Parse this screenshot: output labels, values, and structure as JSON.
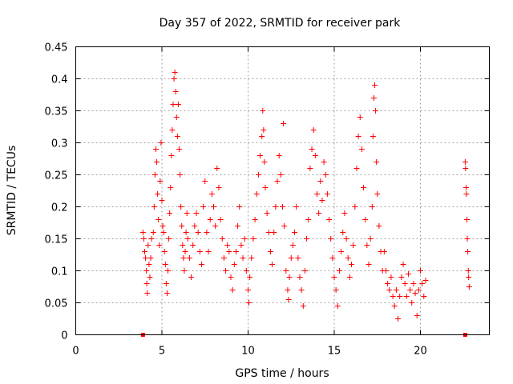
{
  "chart_data": {
    "type": "scatter",
    "title": "Day 357 of 2022, SRMTID for receiver park",
    "xlabel": "GPS time / hours",
    "ylabel": "SRMTID / TECUs",
    "xlim": [
      0,
      24
    ],
    "ylim": [
      0,
      0.45
    ],
    "x_ticks": [
      0,
      5,
      10,
      15,
      20
    ],
    "y_ticks": [
      0,
      0.05,
      0.1,
      0.15,
      0.2,
      0.25,
      0.3,
      0.35,
      0.4,
      0.45
    ],
    "y_tick_labels": [
      "0",
      "0.05",
      "0.1",
      "0.15",
      "0.2",
      "0.25",
      "0.3",
      "0.35",
      "0.4",
      "0.45"
    ],
    "grid": true,
    "marker": "+",
    "color": "#ff0000",
    "zero_markers": [
      [
        3.9,
        0
      ],
      [
        22.6,
        0
      ]
    ],
    "series": [
      {
        "name": "SRMTID",
        "points": [
          [
            3.9,
            0.16
          ],
          [
            3.95,
            0.15
          ],
          [
            4.0,
            0.13
          ],
          [
            4.05,
            0.12
          ],
          [
            4.1,
            0.1
          ],
          [
            4.12,
            0.08
          ],
          [
            4.15,
            0.065
          ],
          [
            4.2,
            0.14
          ],
          [
            4.25,
            0.11
          ],
          [
            4.3,
            0.09
          ],
          [
            4.35,
            0.12
          ],
          [
            4.4,
            0.15
          ],
          [
            4.5,
            0.16
          ],
          [
            4.55,
            0.2
          ],
          [
            4.6,
            0.25
          ],
          [
            4.65,
            0.29
          ],
          [
            4.7,
            0.27
          ],
          [
            4.75,
            0.22
          ],
          [
            4.8,
            0.18
          ],
          [
            4.85,
            0.14
          ],
          [
            4.9,
            0.24
          ],
          [
            4.95,
            0.3
          ],
          [
            5.0,
            0.21
          ],
          [
            5.05,
            0.17
          ],
          [
            5.1,
            0.16
          ],
          [
            5.15,
            0.13
          ],
          [
            5.2,
            0.11
          ],
          [
            5.25,
            0.08
          ],
          [
            5.3,
            0.065
          ],
          [
            5.35,
            0.1
          ],
          [
            5.4,
            0.15
          ],
          [
            5.45,
            0.19
          ],
          [
            5.5,
            0.23
          ],
          [
            5.55,
            0.28
          ],
          [
            5.6,
            0.32
          ],
          [
            5.65,
            0.36
          ],
          [
            5.7,
            0.4
          ],
          [
            5.75,
            0.41
          ],
          [
            5.8,
            0.38
          ],
          [
            5.85,
            0.34
          ],
          [
            5.9,
            0.31
          ],
          [
            5.95,
            0.36
          ],
          [
            6.0,
            0.29
          ],
          [
            6.05,
            0.25
          ],
          [
            6.1,
            0.2
          ],
          [
            6.15,
            0.17
          ],
          [
            6.2,
            0.14
          ],
          [
            6.25,
            0.12
          ],
          [
            6.3,
            0.1
          ],
          [
            6.35,
            0.13
          ],
          [
            6.4,
            0.16
          ],
          [
            6.45,
            0.19
          ],
          [
            6.5,
            0.15
          ],
          [
            6.6,
            0.12
          ],
          [
            6.7,
            0.09
          ],
          [
            6.8,
            0.14
          ],
          [
            6.9,
            0.17
          ],
          [
            7.0,
            0.19
          ],
          [
            7.1,
            0.16
          ],
          [
            7.2,
            0.13
          ],
          [
            7.3,
            0.11
          ],
          [
            7.4,
            0.2
          ],
          [
            7.5,
            0.24
          ],
          [
            7.6,
            0.16
          ],
          [
            7.7,
            0.13
          ],
          [
            7.8,
            0.18
          ],
          [
            7.9,
            0.22
          ],
          [
            8.0,
            0.2
          ],
          [
            8.1,
            0.17
          ],
          [
            8.2,
            0.26
          ],
          [
            8.3,
            0.23
          ],
          [
            8.4,
            0.18
          ],
          [
            8.5,
            0.15
          ],
          [
            8.6,
            0.12
          ],
          [
            8.7,
            0.1
          ],
          [
            8.8,
            0.14
          ],
          [
            8.9,
            0.13
          ],
          [
            9.0,
            0.09
          ],
          [
            9.1,
            0.07
          ],
          [
            9.2,
            0.11
          ],
          [
            9.3,
            0.13
          ],
          [
            9.4,
            0.17
          ],
          [
            9.5,
            0.2
          ],
          [
            9.6,
            0.14
          ],
          [
            9.7,
            0.12
          ],
          [
            9.8,
            0.15
          ],
          [
            9.9,
            0.1
          ],
          [
            10.0,
            0.07
          ],
          [
            10.05,
            0.05
          ],
          [
            10.1,
            0.09
          ],
          [
            10.2,
            0.12
          ],
          [
            10.3,
            0.15
          ],
          [
            10.4,
            0.18
          ],
          [
            10.5,
            0.22
          ],
          [
            10.6,
            0.25
          ],
          [
            10.7,
            0.28
          ],
          [
            10.8,
            0.31
          ],
          [
            10.85,
            0.35
          ],
          [
            10.9,
            0.32
          ],
          [
            10.95,
            0.27
          ],
          [
            11.0,
            0.23
          ],
          [
            11.1,
            0.19
          ],
          [
            11.2,
            0.16
          ],
          [
            11.3,
            0.13
          ],
          [
            11.4,
            0.11
          ],
          [
            11.5,
            0.16
          ],
          [
            11.6,
            0.2
          ],
          [
            11.7,
            0.24
          ],
          [
            11.8,
            0.28
          ],
          [
            11.9,
            0.25
          ],
          [
            12.0,
            0.2
          ],
          [
            12.05,
            0.33
          ],
          [
            12.1,
            0.17
          ],
          [
            12.2,
            0.1
          ],
          [
            12.3,
            0.07
          ],
          [
            12.35,
            0.055
          ],
          [
            12.4,
            0.09
          ],
          [
            12.5,
            0.12
          ],
          [
            12.6,
            0.14
          ],
          [
            12.7,
            0.16
          ],
          [
            12.8,
            0.2
          ],
          [
            12.9,
            0.12
          ],
          [
            13.0,
            0.09
          ],
          [
            13.1,
            0.07
          ],
          [
            13.2,
            0.045
          ],
          [
            13.3,
            0.1
          ],
          [
            13.4,
            0.15
          ],
          [
            13.5,
            0.18
          ],
          [
            13.6,
            0.26
          ],
          [
            13.7,
            0.29
          ],
          [
            13.8,
            0.32
          ],
          [
            13.9,
            0.28
          ],
          [
            14.0,
            0.22
          ],
          [
            14.1,
            0.19
          ],
          [
            14.2,
            0.24
          ],
          [
            14.3,
            0.21
          ],
          [
            14.4,
            0.27
          ],
          [
            14.5,
            0.25
          ],
          [
            14.6,
            0.22
          ],
          [
            14.7,
            0.18
          ],
          [
            14.8,
            0.15
          ],
          [
            14.9,
            0.12
          ],
          [
            15.0,
            0.09
          ],
          [
            15.1,
            0.07
          ],
          [
            15.2,
            0.045
          ],
          [
            15.3,
            0.1
          ],
          [
            15.4,
            0.13
          ],
          [
            15.5,
            0.16
          ],
          [
            15.6,
            0.19
          ],
          [
            15.7,
            0.15
          ],
          [
            15.8,
            0.12
          ],
          [
            15.9,
            0.09
          ],
          [
            16.0,
            0.11
          ],
          [
            16.1,
            0.14
          ],
          [
            16.2,
            0.2
          ],
          [
            16.3,
            0.26
          ],
          [
            16.4,
            0.31
          ],
          [
            16.5,
            0.34
          ],
          [
            16.6,
            0.29
          ],
          [
            16.7,
            0.23
          ],
          [
            16.8,
            0.18
          ],
          [
            16.9,
            0.14
          ],
          [
            17.0,
            0.11
          ],
          [
            17.1,
            0.15
          ],
          [
            17.2,
            0.2
          ],
          [
            17.25,
            0.31
          ],
          [
            17.3,
            0.37
          ],
          [
            17.35,
            0.39
          ],
          [
            17.4,
            0.35
          ],
          [
            17.45,
            0.27
          ],
          [
            17.5,
            0.22
          ],
          [
            17.6,
            0.17
          ],
          [
            17.7,
            0.13
          ],
          [
            17.8,
            0.1
          ],
          [
            17.9,
            0.13
          ],
          [
            18.0,
            0.1
          ],
          [
            18.1,
            0.08
          ],
          [
            18.2,
            0.07
          ],
          [
            18.3,
            0.09
          ],
          [
            18.4,
            0.06
          ],
          [
            18.5,
            0.045
          ],
          [
            18.6,
            0.07
          ],
          [
            18.7,
            0.025
          ],
          [
            18.8,
            0.06
          ],
          [
            18.9,
            0.09
          ],
          [
            19.0,
            0.11
          ],
          [
            19.1,
            0.08
          ],
          [
            19.2,
            0.06
          ],
          [
            19.3,
            0.095
          ],
          [
            19.4,
            0.07
          ],
          [
            19.5,
            0.05
          ],
          [
            19.6,
            0.08
          ],
          [
            19.7,
            0.065
          ],
          [
            19.8,
            0.03
          ],
          [
            19.9,
            0.07
          ],
          [
            20.0,
            0.1
          ],
          [
            20.1,
            0.08
          ],
          [
            20.2,
            0.06
          ],
          [
            20.3,
            0.085
          ],
          [
            22.6,
            0.27
          ],
          [
            22.62,
            0.26
          ],
          [
            22.65,
            0.23
          ],
          [
            22.67,
            0.22
          ],
          [
            22.7,
            0.18
          ],
          [
            22.72,
            0.15
          ],
          [
            22.75,
            0.13
          ],
          [
            22.78,
            0.1
          ],
          [
            22.8,
            0.09
          ],
          [
            22.83,
            0.075
          ]
        ]
      }
    ]
  }
}
